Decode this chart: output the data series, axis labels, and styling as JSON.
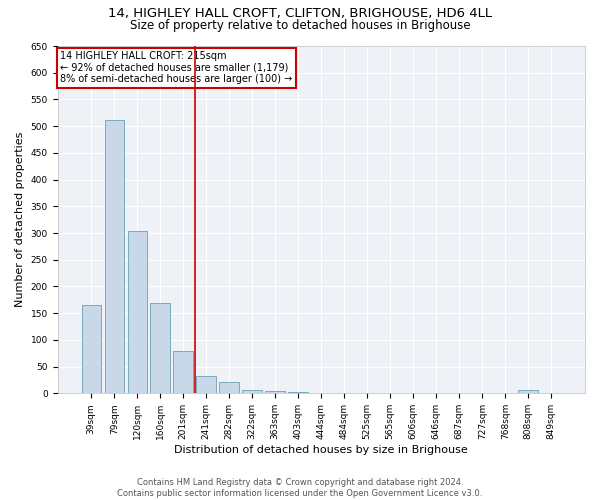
{
  "title1": "14, HIGHLEY HALL CROFT, CLIFTON, BRIGHOUSE, HD6 4LL",
  "title2": "Size of property relative to detached houses in Brighouse",
  "xlabel": "Distribution of detached houses by size in Brighouse",
  "ylabel": "Number of detached properties",
  "categories": [
    "39sqm",
    "79sqm",
    "120sqm",
    "160sqm",
    "201sqm",
    "241sqm",
    "282sqm",
    "322sqm",
    "363sqm",
    "403sqm",
    "444sqm",
    "484sqm",
    "525sqm",
    "565sqm",
    "606sqm",
    "646sqm",
    "687sqm",
    "727sqm",
    "768sqm",
    "808sqm",
    "849sqm"
  ],
  "values": [
    165,
    512,
    304,
    169,
    79,
    33,
    21,
    6,
    5,
    2,
    1,
    1,
    1,
    0,
    0,
    0,
    0,
    0,
    0,
    6,
    0
  ],
  "bar_color": "#c8d8e8",
  "bar_edge_color": "#7aaabb",
  "vline_x": 4.5,
  "vline_color": "#cc0000",
  "annotation_title": "14 HIGHLEY HALL CROFT: 215sqm",
  "annotation_line1": "← 92% of detached houses are smaller (1,179)",
  "annotation_line2": "8% of semi-detached houses are larger (100) →",
  "annotation_box_color": "#cc0000",
  "ylim": [
    0,
    650
  ],
  "yticks": [
    0,
    50,
    100,
    150,
    200,
    250,
    300,
    350,
    400,
    450,
    500,
    550,
    600,
    650
  ],
  "footer1": "Contains HM Land Registry data © Crown copyright and database right 2024.",
  "footer2": "Contains public sector information licensed under the Open Government Licence v3.0.",
  "plot_bg_color": "#eef2f7",
  "title1_fontsize": 9.5,
  "title2_fontsize": 8.5,
  "xlabel_fontsize": 8,
  "ylabel_fontsize": 8,
  "tick_fontsize": 6.5,
  "footer_fontsize": 6,
  "annotation_fontsize": 7
}
